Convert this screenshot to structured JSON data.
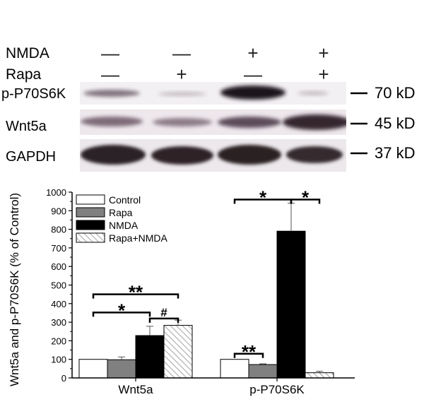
{
  "blot": {
    "treatments": [
      {
        "name": "NMDA",
        "signs": [
          "—",
          "—",
          "+",
          "+"
        ]
      },
      {
        "name": "Rapa",
        "signs": [
          "—",
          "+",
          "—",
          "+"
        ]
      }
    ],
    "proteins": [
      {
        "name": "p-P70S6K",
        "kd": "70 kD"
      },
      {
        "name": "Wnt5a",
        "kd": "45 kD"
      },
      {
        "name": "GAPDH",
        "kd": "37 kD"
      }
    ]
  },
  "chart_data": {
    "type": "bar",
    "categories": [
      "Wnt5a",
      "p-P70S6K"
    ],
    "ylabel": "Wnt5a and p-P70S6K (% of Control)",
    "ylim": [
      0,
      1000
    ],
    "yticks": [
      0,
      100,
      200,
      300,
      400,
      500,
      600,
      700,
      800,
      900,
      1000
    ],
    "legend": "top-left",
    "series": [
      {
        "name": "Control",
        "values": [
          100,
          100
        ],
        "errors": [
          0,
          0
        ],
        "fill": "#ffffff"
      },
      {
        "name": "Rapa",
        "values": [
          98,
          72
        ],
        "errors": [
          15,
          4
        ],
        "fill": "#808080"
      },
      {
        "name": "NMDA",
        "values": [
          228,
          790
        ],
        "errors": [
          50,
          150
        ],
        "fill": "#000000"
      },
      {
        "name": "Rapa+NMDA",
        "values": [
          283,
          28
        ],
        "errors": [
          28,
          8
        ],
        "fill": "hatch"
      }
    ],
    "annotations": [
      {
        "label": "**",
        "group": 0,
        "from": 0,
        "to": 3,
        "level": 450
      },
      {
        "label": "*",
        "group": 0,
        "from": 0,
        "to": 2,
        "level": 352
      },
      {
        "label": "#",
        "group": 0,
        "from": 2,
        "to": 3,
        "level": 320
      },
      {
        "label": "**",
        "group": 1,
        "from": 0,
        "to": 1,
        "level": 130
      },
      {
        "label": "*",
        "group": 1,
        "from": 0,
        "to": 2,
        "level": 960
      },
      {
        "label": "*",
        "group": 1,
        "from": 2,
        "to": 3,
        "level": 960
      }
    ]
  }
}
